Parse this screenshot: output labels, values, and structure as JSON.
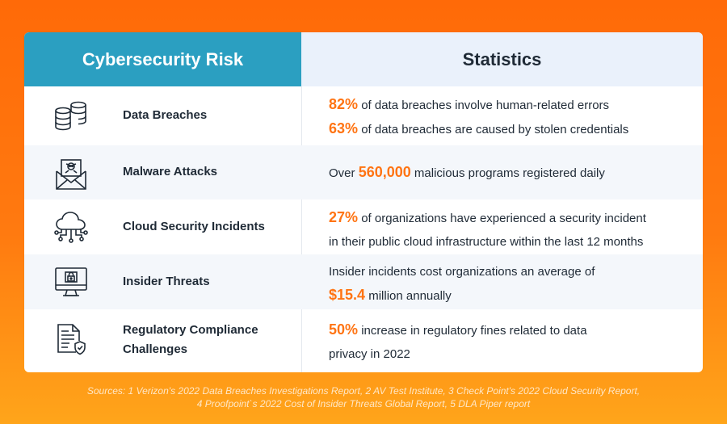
{
  "header": {
    "left_title": "Cybersecurity Risk",
    "right_title": "Statistics"
  },
  "rows": [
    {
      "icon": "database-icon",
      "risk": "Data Breaches",
      "stats": [
        {
          "highlight": "82%",
          "text": " of data breaches involve human-related errors"
        },
        {
          "highlight": "63%",
          "text": " of data breaches are caused by stolen credentials"
        }
      ]
    },
    {
      "icon": "malware-envelope-icon",
      "risk": "Malware Attacks",
      "stats": [
        {
          "prefix": "Over ",
          "highlight": "560,000",
          "text": " malicious programs registered daily"
        }
      ]
    },
    {
      "icon": "cloud-network-icon",
      "risk": "Cloud Security Incidents",
      "stats": [
        {
          "highlight": "27%",
          "text": " of organizations have experienced a security incident",
          "line2": "in their public cloud infrastructure within the last 12 months"
        }
      ]
    },
    {
      "icon": "monitor-lock-icon",
      "risk": "Insider Threats",
      "stats": [
        {
          "text_before": "Insider incidents cost organizations an average of",
          "highlight": "$15.4",
          "text": " million annually"
        }
      ]
    },
    {
      "icon": "document-shield-icon",
      "risk_line1": "Regulatory Compliance",
      "risk_line2": "Challenges",
      "stats": [
        {
          "highlight": "50%",
          "text": " increase in regulatory fines related to data",
          "line2": "privacy in 2022"
        }
      ]
    }
  ],
  "sources": {
    "line1": "Sources: 1 Verizon's 2022 Data Breaches Investigations Report, 2 AV Test Institute, 3 Check Point's 2022 Cloud Security Report,",
    "line2": "4 Proofpoint`s 2022 Cost of Insider Threats Global Report, 5 DLA Piper report"
  },
  "colors": {
    "accent_orange": "#ff7413",
    "header_teal": "#2b9fc1",
    "header_light": "#eaf1fb",
    "background_orange": "#ff6a08"
  }
}
